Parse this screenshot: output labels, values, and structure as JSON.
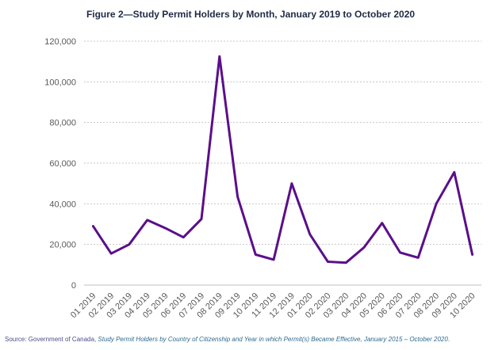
{
  "chart_data": {
    "type": "line",
    "title": "Figure 2—Study Permit Holders by Month, January 2019 to October 2020",
    "xlabel": "",
    "ylabel": "",
    "ylim": [
      0,
      120000
    ],
    "yticks": [
      0,
      20000,
      40000,
      60000,
      80000,
      100000,
      120000
    ],
    "ytick_labels": [
      "0",
      "20,000",
      "40,000",
      "60,000",
      "80,000",
      "100,000",
      "120,000"
    ],
    "grid": true,
    "legend": "none",
    "categories": [
      "01 2019",
      "02 2019",
      "03 2019",
      "04 2019",
      "05 2019",
      "06 2019",
      "07 2019",
      "08 2019",
      "09 2019",
      "10 2019",
      "11 2019",
      "12 2019",
      "01 2020",
      "02 2020",
      "03 2020",
      "04 2020",
      "05 2020",
      "06 2020",
      "07 2020",
      "08 2020",
      "09 2020",
      "10 2020"
    ],
    "series": [
      {
        "name": "Study Permit Holders",
        "color": "#5b0f8a",
        "values": [
          29000,
          15500,
          20000,
          32000,
          28000,
          23500,
          32500,
          112500,
          43500,
          15000,
          12500,
          50000,
          25000,
          11500,
          11000,
          18500,
          30500,
          16000,
          13500,
          40000,
          55500,
          15000
        ]
      }
    ]
  },
  "source": {
    "prefix": "Source: Government of Canada, ",
    "title": "Study Permit Holders by Country of Citizenship and Year in which Permit(s) Became Effective, January 2015 – October 2020",
    "suffix": "."
  }
}
